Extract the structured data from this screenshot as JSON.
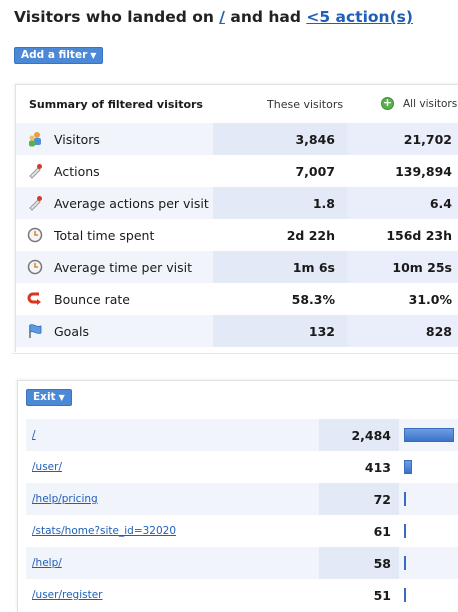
{
  "title": {
    "prefix": "Visitors who landed on ",
    "landing": "/",
    "middle": " and had ",
    "actions": "<5 action(s)"
  },
  "filter_button": {
    "label": "Add a filter",
    "caret": "▼"
  },
  "summary": {
    "header": {
      "label": "Summary of filtered visitors",
      "these": "These visitors",
      "all": "All visitors"
    },
    "rows": [
      {
        "icon": "visitors-icon",
        "label": "Visitors",
        "these": "3,846",
        "all": "21,702"
      },
      {
        "icon": "actions-icon",
        "label": "Actions",
        "these": "7,007",
        "all": "139,894"
      },
      {
        "icon": "actions-per-visit-icon",
        "label": "Average actions per visit",
        "these": "1.8",
        "all": "6.4"
      },
      {
        "icon": "clock-icon",
        "label": "Total time spent",
        "these": "2d 22h",
        "all": "156d 23h"
      },
      {
        "icon": "clock-icon",
        "label": "Average time per visit",
        "these": "1m 6s",
        "all": "10m 25s"
      },
      {
        "icon": "bounce-icon",
        "label": "Bounce rate",
        "these": "58.3%",
        "all": "31.0%"
      },
      {
        "icon": "goals-flag-icon",
        "label": "Goals",
        "these": "132",
        "all": "828"
      }
    ]
  },
  "exit_button": {
    "label": "Exit",
    "caret": "▼"
  },
  "exit_pages": [
    {
      "path": "/",
      "count": "2,484",
      "value": 2484
    },
    {
      "path": "/user/",
      "count": "413",
      "value": 413
    },
    {
      "path": "/help/pricing",
      "count": "72",
      "value": 72
    },
    {
      "path": "/stats/home?site_id=32020",
      "count": "61",
      "value": 61
    },
    {
      "path": "/help/",
      "count": "58",
      "value": 58
    },
    {
      "path": "/user/register",
      "count": "51",
      "value": 51
    }
  ],
  "colors": {
    "link": "#1f5fb8",
    "button": "#4b88d6",
    "bar": "#3c73c9",
    "row_alt": "#f1f4fb"
  }
}
